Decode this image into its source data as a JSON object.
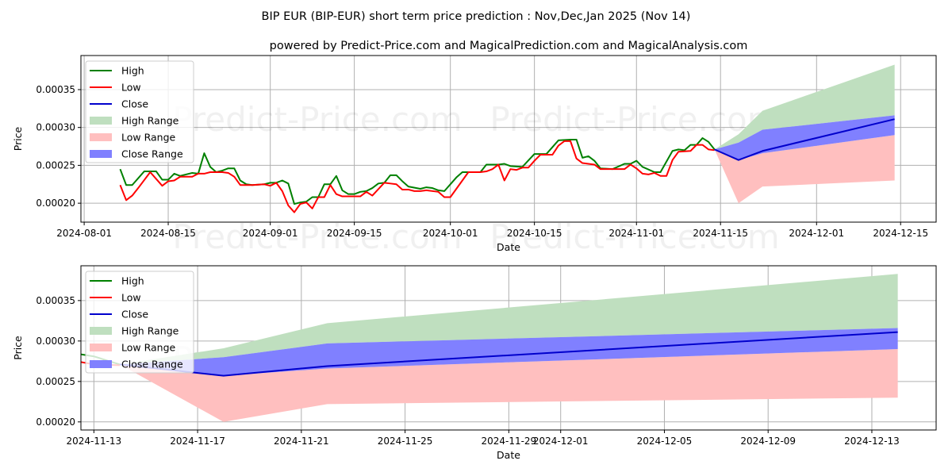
{
  "header": {
    "title": "BIP EUR (BIP-EUR) short term price prediction : Nov,Dec,Jan 2025 (Nov 14)",
    "subtitle": "powered by Predict-Price.com and MagicalPrediction.com and MagicalAnalysis.com",
    "watermark": "Predict-Price.com"
  },
  "chart_data": {
    "type": "line",
    "colors": {
      "high": "#008000",
      "low": "#ff0000",
      "close": "#0000cc",
      "high_range": "#bfdfbf",
      "low_range": "#ffbfbf",
      "close_range": "#8080ff"
    },
    "legend": {
      "placement": "top-left",
      "entries": [
        "High",
        "Low",
        "Close",
        "High Range",
        "Low Range",
        "Close Range"
      ]
    },
    "series": {
      "high": [
        [
          "2024-08-07",
          0.000245
        ],
        [
          "2024-08-08",
          0.000224
        ],
        [
          "2024-08-09",
          0.000224
        ],
        [
          "2024-08-11",
          0.000242
        ],
        [
          "2024-08-13",
          0.000242
        ],
        [
          "2024-08-14",
          0.000231
        ],
        [
          "2024-08-15",
          0.000231
        ],
        [
          "2024-08-16",
          0.000239
        ],
        [
          "2024-08-17",
          0.000236
        ],
        [
          "2024-08-19",
          0.00024
        ],
        [
          "2024-08-20",
          0.000239
        ],
        [
          "2024-08-21",
          0.000266
        ],
        [
          "2024-08-22",
          0.000248
        ],
        [
          "2024-08-23",
          0.000241
        ],
        [
          "2024-08-24",
          0.000243
        ],
        [
          "2024-08-25",
          0.000246
        ],
        [
          "2024-08-26",
          0.000246
        ],
        [
          "2024-08-27",
          0.00023
        ],
        [
          "2024-08-28",
          0.000225
        ],
        [
          "2024-08-29",
          0.000224
        ],
        [
          "2024-08-31",
          0.000225
        ],
        [
          "2024-09-01",
          0.000227
        ],
        [
          "2024-09-02",
          0.000227
        ],
        [
          "2024-09-03",
          0.00023
        ],
        [
          "2024-09-04",
          0.000226
        ],
        [
          "2024-09-05",
          0.000199
        ],
        [
          "2024-09-06",
          0.000201
        ],
        [
          "2024-09-07",
          0.000202
        ],
        [
          "2024-09-08",
          0.000208
        ],
        [
          "2024-09-09",
          0.000208
        ],
        [
          "2024-09-10",
          0.000225
        ],
        [
          "2024-09-11",
          0.000225
        ],
        [
          "2024-09-12",
          0.000236
        ],
        [
          "2024-09-13",
          0.000217
        ],
        [
          "2024-09-14",
          0.000212
        ],
        [
          "2024-09-15",
          0.000212
        ],
        [
          "2024-09-16",
          0.000215
        ],
        [
          "2024-09-17",
          0.000216
        ],
        [
          "2024-09-18",
          0.00022
        ],
        [
          "2024-09-19",
          0.000226
        ],
        [
          "2024-09-20",
          0.000227
        ],
        [
          "2024-09-21",
          0.000237
        ],
        [
          "2024-09-22",
          0.000237
        ],
        [
          "2024-09-23",
          0.000229
        ],
        [
          "2024-09-24",
          0.000222
        ],
        [
          "2024-09-26",
          0.000219
        ],
        [
          "2024-09-27",
          0.000221
        ],
        [
          "2024-09-28",
          0.00022
        ],
        [
          "2024-09-29",
          0.000217
        ],
        [
          "2024-09-30",
          0.000216
        ],
        [
          "2024-10-02",
          0.000234
        ],
        [
          "2024-10-03",
          0.000241
        ],
        [
          "2024-10-06",
          0.000241
        ],
        [
          "2024-10-07",
          0.000251
        ],
        [
          "2024-10-09",
          0.000251
        ],
        [
          "2024-10-10",
          0.000252
        ],
        [
          "2024-10-11",
          0.000249
        ],
        [
          "2024-10-13",
          0.000248
        ],
        [
          "2024-10-15",
          0.000265
        ],
        [
          "2024-10-17",
          0.000265
        ],
        [
          "2024-10-19",
          0.000283
        ],
        [
          "2024-10-21",
          0.000284
        ],
        [
          "2024-10-22",
          0.000284
        ],
        [
          "2024-10-23",
          0.00026
        ],
        [
          "2024-10-24",
          0.000262
        ],
        [
          "2024-10-25",
          0.000256
        ],
        [
          "2024-10-26",
          0.000246
        ],
        [
          "2024-10-28",
          0.000245
        ],
        [
          "2024-10-30",
          0.000252
        ],
        [
          "2024-10-31",
          0.000252
        ],
        [
          "2024-11-01",
          0.000256
        ],
        [
          "2024-11-02",
          0.000248
        ],
        [
          "2024-11-04",
          0.000241
        ],
        [
          "2024-11-05",
          0.000241
        ],
        [
          "2024-11-07",
          0.000269
        ],
        [
          "2024-11-08",
          0.000271
        ],
        [
          "2024-11-09",
          0.00027
        ],
        [
          "2024-11-10",
          0.000277
        ],
        [
          "2024-11-11",
          0.000277
        ],
        [
          "2024-11-12",
          0.000286
        ],
        [
          "2024-11-13",
          0.000281
        ],
        [
          "2024-11-14",
          0.000271
        ]
      ],
      "low": [
        [
          "2024-08-07",
          0.000224
        ],
        [
          "2024-08-08",
          0.000204
        ],
        [
          "2024-08-09",
          0.00021
        ],
        [
          "2024-08-10",
          0.00022
        ],
        [
          "2024-08-12",
          0.000241
        ],
        [
          "2024-08-13",
          0.000232
        ],
        [
          "2024-08-14",
          0.000223
        ],
        [
          "2024-08-15",
          0.000229
        ],
        [
          "2024-08-16",
          0.00023
        ],
        [
          "2024-08-17",
          0.000235
        ],
        [
          "2024-08-19",
          0.000235
        ],
        [
          "2024-08-20",
          0.000239
        ],
        [
          "2024-08-21",
          0.000239
        ],
        [
          "2024-08-22",
          0.000241
        ],
        [
          "2024-08-24",
          0.000241
        ],
        [
          "2024-08-25",
          0.00024
        ],
        [
          "2024-08-26",
          0.000235
        ],
        [
          "2024-08-27",
          0.000224
        ],
        [
          "2024-08-29",
          0.000224
        ],
        [
          "2024-08-31",
          0.000225
        ],
        [
          "2024-09-01",
          0.000223
        ],
        [
          "2024-09-02",
          0.000227
        ],
        [
          "2024-09-03",
          0.000216
        ],
        [
          "2024-09-04",
          0.000197
        ],
        [
          "2024-09-05",
          0.000188
        ],
        [
          "2024-09-06",
          0.000199
        ],
        [
          "2024-09-07",
          0.000201
        ],
        [
          "2024-09-08",
          0.000193
        ],
        [
          "2024-09-09",
          0.000208
        ],
        [
          "2024-09-10",
          0.000208
        ],
        [
          "2024-09-11",
          0.000224
        ],
        [
          "2024-09-12",
          0.000212
        ],
        [
          "2024-09-13",
          0.000209
        ],
        [
          "2024-09-15",
          0.000209
        ],
        [
          "2024-09-16",
          0.000209
        ],
        [
          "2024-09-17",
          0.000215
        ],
        [
          "2024-09-18",
          0.00021
        ],
        [
          "2024-09-20",
          0.000227
        ],
        [
          "2024-09-21",
          0.000226
        ],
        [
          "2024-09-22",
          0.000225
        ],
        [
          "2024-09-23",
          0.000218
        ],
        [
          "2024-09-24",
          0.000218
        ],
        [
          "2024-09-25",
          0.000216
        ],
        [
          "2024-09-26",
          0.000216
        ],
        [
          "2024-09-27",
          0.000217
        ],
        [
          "2024-09-29",
          0.000215
        ],
        [
          "2024-09-30",
          0.000208
        ],
        [
          "2024-10-01",
          0.000208
        ],
        [
          "2024-10-04",
          0.000241
        ],
        [
          "2024-10-06",
          0.000241
        ],
        [
          "2024-10-07",
          0.000242
        ],
        [
          "2024-10-08",
          0.000245
        ],
        [
          "2024-10-09",
          0.000251
        ],
        [
          "2024-10-10",
          0.00023
        ],
        [
          "2024-10-11",
          0.000245
        ],
        [
          "2024-10-12",
          0.000244
        ],
        [
          "2024-10-13",
          0.000247
        ],
        [
          "2024-10-14",
          0.000247
        ],
        [
          "2024-10-15",
          0.000256
        ],
        [
          "2024-10-16",
          0.000264
        ],
        [
          "2024-10-18",
          0.000264
        ],
        [
          "2024-10-19",
          0.000276
        ],
        [
          "2024-10-20",
          0.000282
        ],
        [
          "2024-10-21",
          0.000282
        ],
        [
          "2024-10-22",
          0.000259
        ],
        [
          "2024-10-23",
          0.000253
        ],
        [
          "2024-10-25",
          0.000251
        ],
        [
          "2024-10-26",
          0.000245
        ],
        [
          "2024-10-30",
          0.000245
        ],
        [
          "2024-10-31",
          0.000251
        ],
        [
          "2024-11-01",
          0.000246
        ],
        [
          "2024-11-02",
          0.000239
        ],
        [
          "2024-11-03",
          0.000238
        ],
        [
          "2024-11-04",
          0.00024
        ],
        [
          "2024-11-05",
          0.000236
        ],
        [
          "2024-11-06",
          0.000236
        ],
        [
          "2024-11-07",
          0.000257
        ],
        [
          "2024-11-08",
          0.000268
        ],
        [
          "2024-11-10",
          0.000269
        ],
        [
          "2024-11-11",
          0.000277
        ],
        [
          "2024-11-12",
          0.000277
        ],
        [
          "2024-11-13",
          0.000271
        ],
        [
          "2024-11-14",
          0.00027
        ]
      ],
      "forecast_dates": [
        "2024-11-14",
        "2024-11-18",
        "2024-11-22",
        "2024-12-14"
      ],
      "close": [
        0.000271,
        0.000257,
        0.000269,
        0.000311
      ],
      "high_range_upper": [
        0.000271,
        0.000291,
        0.000322,
        0.000383
      ],
      "close_range_upper": [
        0.000271,
        0.00028,
        0.000297,
        0.000316
      ],
      "close_range_lower": [
        0.000271,
        0.000257,
        0.000266,
        0.00029
      ],
      "low_range_lower": [
        0.000271,
        0.0002,
        0.000222,
        0.00023
      ]
    },
    "charts": [
      {
        "xlabel": "Date",
        "ylabel": "Price",
        "grid": true,
        "xlim": [
          "2024-07-31T11:00",
          "2024-12-20T22:00"
        ],
        "ylim": [
          0.000175,
          0.000395
        ],
        "xticks": [
          [
            "2024-08-01",
            "2024-08-01"
          ],
          [
            "2024-08-15",
            "2024-08-15"
          ],
          [
            "2024-09-01",
            "2024-09-01"
          ],
          [
            "2024-09-15",
            "2024-09-15"
          ],
          [
            "2024-10-01",
            "2024-10-01"
          ],
          [
            "2024-10-15",
            "2024-10-15"
          ],
          [
            "2024-11-01",
            "2024-11-01"
          ],
          [
            "2024-11-15",
            "2024-11-15"
          ],
          [
            "2024-12-01",
            "2024-12-01"
          ],
          [
            "2024-12-15",
            "2024-12-15"
          ]
        ],
        "yticks": [
          [
            0.0002,
            "0.00020"
          ],
          [
            0.00025,
            "0.00025"
          ],
          [
            0.0003,
            "0.00030"
          ],
          [
            0.00035,
            "0.00035"
          ]
        ]
      },
      {
        "xlabel": "Date",
        "ylabel": "Price",
        "grid": true,
        "xlim": [
          "2024-11-12T12:00",
          "2024-12-15T11:30"
        ],
        "ylim": [
          0.00019,
          0.000393
        ],
        "xticks": [
          [
            "2024-11-13",
            "2024-11-13"
          ],
          [
            "2024-11-17",
            "2024-11-17"
          ],
          [
            "2024-11-21",
            "2024-11-21"
          ],
          [
            "2024-11-25",
            "2024-11-25"
          ],
          [
            "2024-11-29",
            "2024-11-29"
          ],
          [
            "2024-12-01",
            "2024-12-01"
          ],
          [
            "2024-12-05",
            "2024-12-05"
          ],
          [
            "2024-12-09",
            "2024-12-09"
          ],
          [
            "2024-12-13",
            "2024-12-13"
          ]
        ],
        "yticks": [
          [
            0.0002,
            "0.00020"
          ],
          [
            0.00025,
            "0.00025"
          ],
          [
            0.0003,
            "0.00030"
          ],
          [
            0.00035,
            "0.00035"
          ]
        ]
      }
    ]
  }
}
